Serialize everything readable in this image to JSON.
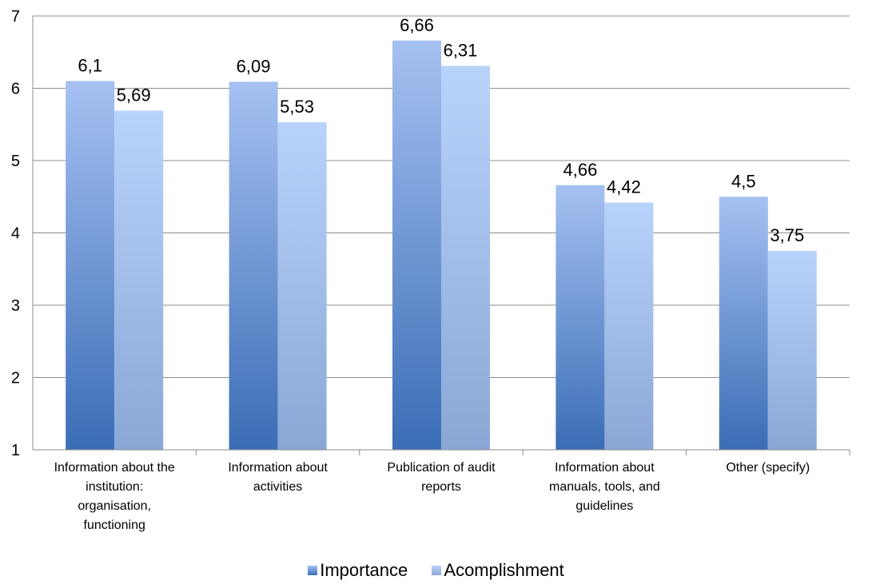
{
  "chart_data": {
    "type": "bar",
    "categories": [
      [
        "Information about the",
        "institution:",
        "organisation,",
        "functioning"
      ],
      [
        "Information about",
        "activities"
      ],
      [
        "Publication of audit",
        "reports"
      ],
      [
        "Information about",
        "manuals, tools, and",
        "guidelines"
      ],
      [
        "Other (specify)"
      ]
    ],
    "series": [
      {
        "name": "Importance",
        "values": [
          6.1,
          6.09,
          6.66,
          4.66,
          4.5
        ],
        "labels": [
          "6,1",
          "6,09",
          "6,66",
          "4,66",
          "4,5"
        ],
        "color_top": "#a6c1f2",
        "color_bottom": "#3a6db5"
      },
      {
        "name": "Acomplishment",
        "values": [
          5.69,
          5.53,
          6.31,
          4.42,
          3.75
        ],
        "labels": [
          "5,69",
          "5,53",
          "6,31",
          "4,42",
          "3,75"
        ],
        "color_top": "#b8d3fb",
        "color_bottom": "#8aa7d6"
      }
    ],
    "yticks": [
      "1",
      "2",
      "3",
      "4",
      "5",
      "6",
      "7"
    ],
    "ylim": [
      1,
      7
    ],
    "grid": true,
    "legend_position": "bottom"
  }
}
